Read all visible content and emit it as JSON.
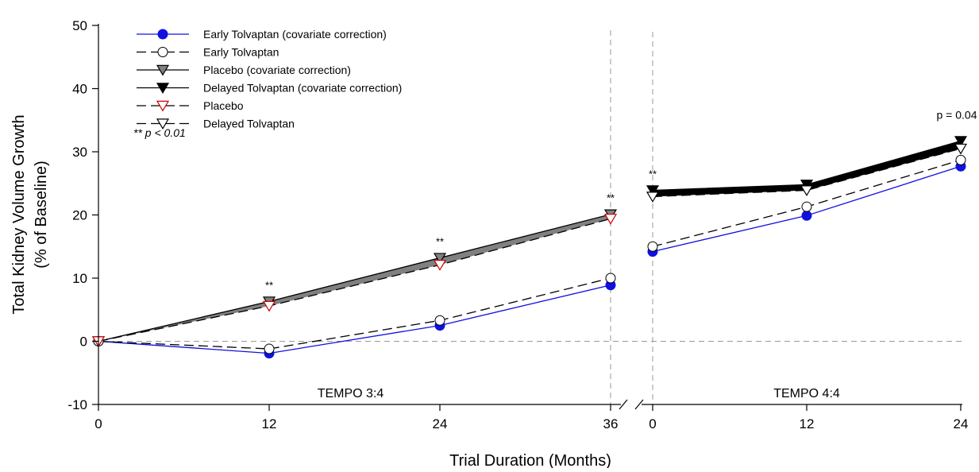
{
  "chart_data": {
    "type": "line",
    "xlabel": "Trial Duration (Months)",
    "ylabel_line1": "Total Kidney Volume Growth",
    "ylabel_line2": "(% of Baseline)",
    "ylim": [
      -10,
      50
    ],
    "yticks": [
      "-10",
      "0",
      "10",
      "20",
      "30",
      "40",
      "50"
    ],
    "segments": [
      {
        "label": "TEMPO 3:4",
        "x": [
          0,
          12,
          24,
          36
        ],
        "xticks": [
          "0",
          "12",
          "24",
          "36"
        ],
        "series": [
          {
            "name": "Early Tolvaptan (covariate correction)",
            "y": [
              0,
              -1.9,
              2.5,
              8.9
            ]
          },
          {
            "name": "Early Tolvaptan",
            "y": [
              0,
              -1.2,
              3.3,
              10.0
            ]
          },
          {
            "name": "Placebo (covariate correction)",
            "y": [
              0,
              6.3,
              13.2,
              20.1
            ]
          },
          {
            "name": "Placebo",
            "y": [
              0,
              5.6,
              12.1,
              19.4
            ]
          }
        ],
        "significance": [
          {
            "x": 12,
            "label": "**"
          },
          {
            "x": 24,
            "label": "**"
          },
          {
            "x": 36,
            "label": "**"
          }
        ]
      },
      {
        "label": "TEMPO 4:4",
        "x": [
          0,
          12,
          24
        ],
        "xticks": [
          "0",
          "12",
          "24"
        ],
        "series": [
          {
            "name": "Early Tolvaptan (covariate correction)",
            "y": [
              14.2,
              19.9,
              27.7
            ]
          },
          {
            "name": "Early Tolvaptan",
            "y": [
              15.0,
              21.3,
              28.7
            ]
          },
          {
            "name": "Delayed Tolvaptan (covariate correction)",
            "y": [
              23.9,
              24.8,
              31.7
            ]
          },
          {
            "name": "Delayed Tolvaptan",
            "y": [
              22.9,
              23.9,
              30.5
            ]
          }
        ],
        "significance": [
          {
            "x": 0,
            "label": "**"
          },
          {
            "x": 24,
            "label": "p = 0.04"
          }
        ]
      }
    ],
    "legend": [
      {
        "label": "Early Tolvaptan (covariate correction)",
        "marker": "filled-circle",
        "color": "#1010e0",
        "dash": false
      },
      {
        "label": "Early Tolvaptan",
        "marker": "open-circle",
        "color": "#000000",
        "dash": true
      },
      {
        "label": "Placebo (covariate correction)",
        "marker": "gray-triangle-down",
        "color": "#000000",
        "dash": false
      },
      {
        "label": "Delayed Tolvaptan (covariate correction)",
        "marker": "black-triangle-down",
        "color": "#000000",
        "dash": false
      },
      {
        "label": "Placebo",
        "marker": "red-open-triangle-down",
        "color": "#cc0000",
        "dash": true
      },
      {
        "label": "Delayed Tolvaptan",
        "marker": "open-triangle-down",
        "color": "#000000",
        "dash": true
      }
    ],
    "footnote": "** p < 0.01",
    "legend_position": "top-left",
    "grid": false,
    "colors": {
      "blue": "#1010e0",
      "gray_fill": "#808080",
      "red": "#cc0000",
      "black": "#000000",
      "reference_line": "#999999"
    }
  }
}
